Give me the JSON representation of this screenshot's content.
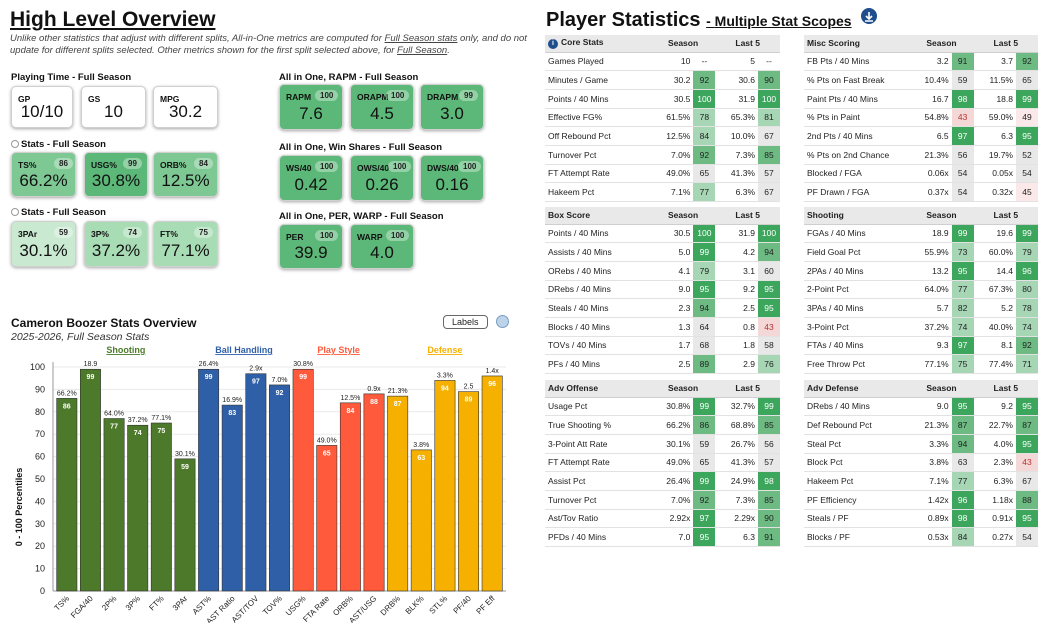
{
  "overview": {
    "title": "High Level Overview",
    "note_pre": "Unlike other statistics that adjust with different splits, All-in-One metrics are computed for ",
    "note_link1": "Full Season stats",
    "note_mid": " only, and do not update for different splits selected. Other metrics shown for the first split selected above, for ",
    "note_link2": "Full Season",
    "note_post": "."
  },
  "playing_time": {
    "heading": "Playing Time - Full Season",
    "cards": [
      {
        "label": "GP",
        "value": "10/10"
      },
      {
        "label": "GS",
        "value": "10"
      },
      {
        "label": "MPG",
        "value": "30.2"
      }
    ]
  },
  "stats1": {
    "heading": "Stats - Full Season",
    "cards": [
      {
        "label": "TS%",
        "pct": "86",
        "value": "66.2%"
      },
      {
        "label": "USG%",
        "pct": "99",
        "value": "30.8%"
      },
      {
        "label": "ORB%",
        "pct": "84",
        "value": "12.5%"
      }
    ]
  },
  "stats2": {
    "heading": "Stats - Full Season",
    "cards": [
      {
        "label": "3PAr",
        "pct": "59",
        "value": "30.1%"
      },
      {
        "label": "3P%",
        "pct": "74",
        "value": "37.2%"
      },
      {
        "label": "FT%",
        "pct": "75",
        "value": "77.1%"
      }
    ]
  },
  "rapm": {
    "heading": "All in One, RAPM - Full Season",
    "cards": [
      {
        "label": "RAPM",
        "pct": "100",
        "value": "7.6"
      },
      {
        "label": "ORAPM",
        "pct": "100",
        "value": "4.5"
      },
      {
        "label": "DRAPM",
        "pct": "99",
        "value": "3.0"
      }
    ]
  },
  "winshares": {
    "heading": "All in One, Win Shares - Full Season",
    "cards": [
      {
        "label": "WS/40",
        "pct": "100",
        "value": "0.42"
      },
      {
        "label": "OWS/40",
        "pct": "100",
        "value": "0.26"
      },
      {
        "label": "DWS/40",
        "pct": "100",
        "value": "0.16"
      }
    ]
  },
  "per": {
    "heading": "All in One, PER, WARP - Full Season",
    "cards": [
      {
        "label": "PER",
        "pct": "100",
        "value": "39.9"
      },
      {
        "label": "WARP",
        "pct": "100",
        "value": "4.0"
      }
    ]
  },
  "chart": {
    "labels_button": "Labels"
  },
  "chart_data": {
    "type": "bar",
    "title": "Cameron Boozer Stats Overview",
    "subtitle": "2025-2026, Full Season Stats",
    "ylabel": "0 - 100 Percentiles",
    "ylim": [
      0,
      100
    ],
    "yticks": [
      "0",
      "10",
      "20",
      "30",
      "40",
      "50",
      "60",
      "70",
      "80",
      "90",
      "100"
    ],
    "groups": [
      {
        "name": "Shooting",
        "color": "#4d7a2a"
      },
      {
        "name": "Ball Handling",
        "color": "#2f5fa7"
      },
      {
        "name": "Play Style",
        "color": "#ff5a3c"
      },
      {
        "name": "Defense",
        "color": "#f5b000"
      }
    ],
    "bars": [
      {
        "cat": "TS%",
        "value": 86,
        "raw": "66.2%",
        "group": 0
      },
      {
        "cat": "FGA/40",
        "value": 99,
        "raw": "18.9",
        "group": 0
      },
      {
        "cat": "2P%",
        "value": 77,
        "raw": "64.0%",
        "group": 0
      },
      {
        "cat": "3P%",
        "value": 74,
        "raw": "37.2%",
        "group": 0
      },
      {
        "cat": "FT%",
        "value": 75,
        "raw": "77.1%",
        "group": 0
      },
      {
        "cat": "3PAr",
        "value": 59,
        "raw": "30.1%",
        "group": 0
      },
      {
        "cat": "AST%",
        "value": 99,
        "raw": "26.4%",
        "group": 1
      },
      {
        "cat": "AST Ratio",
        "value": 83,
        "raw": "16.9%",
        "group": 1
      },
      {
        "cat": "AST/TOV",
        "value": 97,
        "raw": "2.9x",
        "group": 1
      },
      {
        "cat": "TOV%",
        "value": 92,
        "raw": "7.0%",
        "group": 1
      },
      {
        "cat": "USG%",
        "value": 99,
        "raw": "30.8%",
        "group": 2
      },
      {
        "cat": "FTA Rate",
        "value": 65,
        "raw": "49.0%",
        "group": 2
      },
      {
        "cat": "ORB%",
        "value": 84,
        "raw": "12.5%",
        "group": 2
      },
      {
        "cat": "AST/USG",
        "value": 88,
        "raw": "0.9x",
        "group": 2
      },
      {
        "cat": "DRB%",
        "value": 87,
        "raw": "21.3%",
        "group": 3
      },
      {
        "cat": "BLK%",
        "value": 63,
        "raw": "3.8%",
        "group": 3
      },
      {
        "cat": "STL%",
        "value": 94,
        "raw": "3.3%",
        "group": 3
      },
      {
        "cat": "PF/40",
        "value": 89,
        "raw": "2.5",
        "group": 3
      },
      {
        "cat": "PF Eff",
        "value": 96,
        "raw": "1.4x",
        "group": 3
      }
    ]
  },
  "player_stats": {
    "title": "Player Statistics",
    "subtitle": "Multiple Stat Scopes",
    "col_season": "Season",
    "col_last5": "Last 5",
    "tables": [
      {
        "name": "Core Stats",
        "info": true,
        "rows": [
          [
            "Games Played",
            "10",
            "--",
            "5",
            "--"
          ],
          [
            "Minutes / Game",
            "30.2",
            "92",
            "30.6",
            "90"
          ],
          [
            "Points / 40 Mins",
            "30.5",
            "100",
            "31.9",
            "100"
          ],
          [
            "Effective FG%",
            "61.5%",
            "78",
            "65.3%",
            "81"
          ],
          [
            "Off Rebound Pct",
            "12.5%",
            "84",
            "10.0%",
            "67"
          ],
          [
            "Turnover Pct",
            "7.0%",
            "92",
            "7.3%",
            "85"
          ],
          [
            "FT Attempt Rate",
            "49.0%",
            "65",
            "41.3%",
            "57"
          ],
          [
            "Hakeem Pct",
            "7.1%",
            "77",
            "6.3%",
            "67"
          ]
        ]
      },
      {
        "name": "Misc Scoring",
        "rows": [
          [
            "FB Pts / 40 Mins",
            "3.2",
            "91",
            "3.7",
            "92"
          ],
          [
            "% Pts on Fast Break",
            "10.4%",
            "59",
            "11.5%",
            "65"
          ],
          [
            "Paint Pts / 40 Mins",
            "16.7",
            "98",
            "18.8",
            "99"
          ],
          [
            "% Pts in Paint",
            "54.8%",
            "43",
            "59.0%",
            "49"
          ],
          [
            "2nd Pts / 40 Mins",
            "6.5",
            "97",
            "6.3",
            "95"
          ],
          [
            "% Pts on 2nd Chance",
            "21.3%",
            "56",
            "19.7%",
            "52"
          ],
          [
            "Blocked / FGA",
            "0.06x",
            "54",
            "0.05x",
            "54"
          ],
          [
            "PF Drawn / FGA",
            "0.37x",
            "54",
            "0.32x",
            "45"
          ]
        ]
      },
      {
        "name": "Box Score",
        "rows": [
          [
            "Points / 40 Mins",
            "30.5",
            "100",
            "31.9",
            "100"
          ],
          [
            "Assists / 40 Mins",
            "5.0",
            "99",
            "4.2",
            "94"
          ],
          [
            "ORebs / 40 Mins",
            "4.1",
            "79",
            "3.1",
            "60"
          ],
          [
            "DRebs / 40 Mins",
            "9.0",
            "95",
            "9.2",
            "95"
          ],
          [
            "Steals / 40 Mins",
            "2.3",
            "94",
            "2.5",
            "95"
          ],
          [
            "Blocks / 40 Mins",
            "1.3",
            "64",
            "0.8",
            "43"
          ],
          [
            "TOVs / 40 Mins",
            "1.7",
            "68",
            "1.8",
            "58"
          ],
          [
            "PFs / 40 Mins",
            "2.5",
            "89",
            "2.9",
            "76"
          ]
        ]
      },
      {
        "name": "Shooting",
        "rows": [
          [
            "FGAs / 40 Mins",
            "18.9",
            "99",
            "19.6",
            "99"
          ],
          [
            "Field Goal Pct",
            "55.9%",
            "73",
            "60.0%",
            "79"
          ],
          [
            "2PAs / 40 Mins",
            "13.2",
            "95",
            "14.4",
            "96"
          ],
          [
            "2-Point Pct",
            "64.0%",
            "77",
            "67.3%",
            "80"
          ],
          [
            "3PAs / 40 Mins",
            "5.7",
            "82",
            "5.2",
            "78"
          ],
          [
            "3-Point Pct",
            "37.2%",
            "74",
            "40.0%",
            "74"
          ],
          [
            "FTAs / 40 Mins",
            "9.3",
            "97",
            "8.1",
            "92"
          ],
          [
            "Free Throw Pct",
            "77.1%",
            "75",
            "77.4%",
            "71"
          ]
        ]
      },
      {
        "name": "Adv Offense",
        "rows": [
          [
            "Usage Pct",
            "30.8%",
            "99",
            "32.7%",
            "99"
          ],
          [
            "True Shooting %",
            "66.2%",
            "86",
            "68.8%",
            "85"
          ],
          [
            "3-Point Att Rate",
            "30.1%",
            "59",
            "26.7%",
            "56"
          ],
          [
            "FT Attempt Rate",
            "49.0%",
            "65",
            "41.3%",
            "57"
          ],
          [
            "Assist Pct",
            "26.4%",
            "99",
            "24.9%",
            "98"
          ],
          [
            "Turnover Pct",
            "7.0%",
            "92",
            "7.3%",
            "85"
          ],
          [
            "Ast/Tov Ratio",
            "2.92x",
            "97",
            "2.29x",
            "90"
          ],
          [
            "PFDs / 40 Mins",
            "7.0",
            "95",
            "6.3",
            "91"
          ]
        ]
      },
      {
        "name": "Adv Defense",
        "rows": [
          [
            "DRebs / 40 Mins",
            "9.0",
            "95",
            "9.2",
            "95"
          ],
          [
            "Def Rebound Pct",
            "21.3%",
            "87",
            "22.7%",
            "87"
          ],
          [
            "Steal Pct",
            "3.3%",
            "94",
            "4.0%",
            "95"
          ],
          [
            "Block Pct",
            "3.8%",
            "63",
            "2.3%",
            "43"
          ],
          [
            "Hakeem Pct",
            "7.1%",
            "77",
            "6.3%",
            "67"
          ],
          [
            "PF Efficiency",
            "1.42x",
            "96",
            "1.18x",
            "88"
          ],
          [
            "Steals / PF",
            "0.89x",
            "98",
            "0.91x",
            "95"
          ],
          [
            "Blocks / PF",
            "0.53x",
            "84",
            "0.27x",
            "54"
          ]
        ]
      }
    ]
  }
}
